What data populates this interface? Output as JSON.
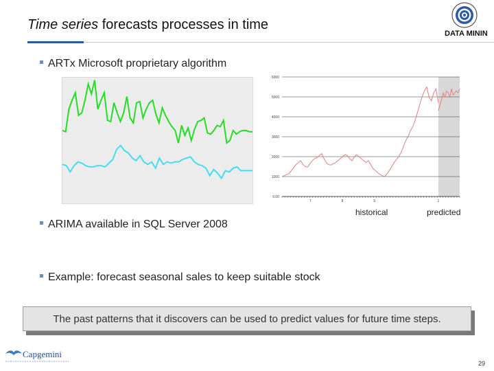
{
  "slide": {
    "title_italic": "Time series",
    "title_rest": " forecasts processes in time",
    "brand_text": "DATA MININ",
    "bullets": {
      "b1": "ARTx Microsoft proprietary algorithm",
      "b2": "ARIMA available in SQL Server 2008",
      "b3": "Example: forecast seasonal sales to keep suitable stock"
    },
    "callout": "The past patterns that it discovers can be used to predict values for future time steps.",
    "page_number": "29",
    "footer_logo_text": "Capgemini",
    "colors": {
      "accent": "#2a5aa8",
      "green": "#22dd22",
      "cyan": "#44ddee",
      "historical_line": "#e08080",
      "predicted_band": "#d8d8d8"
    }
  },
  "chart_data": [
    {
      "type": "line",
      "title": "",
      "xlabel": "",
      "ylabel": "",
      "grid": false,
      "series": [
        {
          "color": "#22dd22",
          "values": [
            58,
            57,
            75,
            82,
            88,
            70,
            72,
            82,
            95,
            87,
            98,
            75,
            82,
            88,
            66,
            65,
            80,
            72,
            65,
            72,
            85,
            68,
            64,
            80,
            81,
            68,
            75,
            80,
            82,
            71,
            64,
            76,
            70,
            65,
            61,
            58,
            48,
            62,
            54,
            60,
            50,
            59,
            65,
            66,
            68,
            56,
            55,
            58,
            62,
            61,
            66,
            48,
            50,
            58,
            55,
            57,
            58,
            58,
            57,
            57
          ]
        },
        {
          "color": "#44ddee",
          "values": [
            31,
            30,
            25,
            30,
            33,
            32,
            30,
            29,
            29,
            30,
            30,
            29,
            32,
            35,
            43,
            46,
            42,
            40,
            36,
            34,
            38,
            33,
            31,
            33,
            28,
            36,
            31,
            33,
            32,
            33,
            33,
            35,
            36,
            37,
            33,
            31,
            30,
            28,
            22,
            27,
            24,
            20,
            26,
            25,
            28,
            29,
            26,
            26,
            26,
            26
          ]
        }
      ]
    },
    {
      "type": "line",
      "title": "",
      "xlabel": "",
      "ylabel": "",
      "ylim": [
        0,
        6000
      ],
      "yticks": [
        "0.00",
        "1000",
        "2000",
        "3000",
        "4000",
        "5000",
        "6000"
      ],
      "xticks": [
        "7",
        "8",
        "9",
        "1"
      ],
      "grid": true,
      "series_labels": {
        "historical": "historical",
        "predicted": "predicted"
      },
      "series": [
        {
          "name": "historical",
          "color": "#e08080",
          "values": [
            1000,
            1050,
            1100,
            1150,
            1300,
            1450,
            1600,
            1700,
            1800,
            1600,
            1500,
            1480,
            1650,
            1800,
            1900,
            1950,
            2050,
            2150,
            1900,
            1700,
            1600,
            1580,
            1650,
            1700,
            1800,
            1900,
            2000,
            2100,
            2050,
            1900,
            1800,
            2000,
            2100,
            2000,
            1900,
            1800,
            1700,
            1800,
            1600,
            1400,
            1300,
            1200,
            1100,
            1050,
            1000,
            1150,
            1300,
            1500,
            1700,
            1850,
            2000,
            2200,
            2500,
            2800,
            3000,
            3300,
            3500,
            3800,
            4200,
            4600,
            5000,
            5300,
            5500,
            5000,
            4800,
            5200,
            5400,
            4700
          ]
        },
        {
          "name": "predicted",
          "color": "#e08080",
          "values": [
            4300,
            4600,
            4900,
            5200,
            5000,
            5300,
            5200,
            5000,
            5400,
            5100,
            5200,
            5300,
            5200,
            5400
          ]
        }
      ]
    }
  ]
}
